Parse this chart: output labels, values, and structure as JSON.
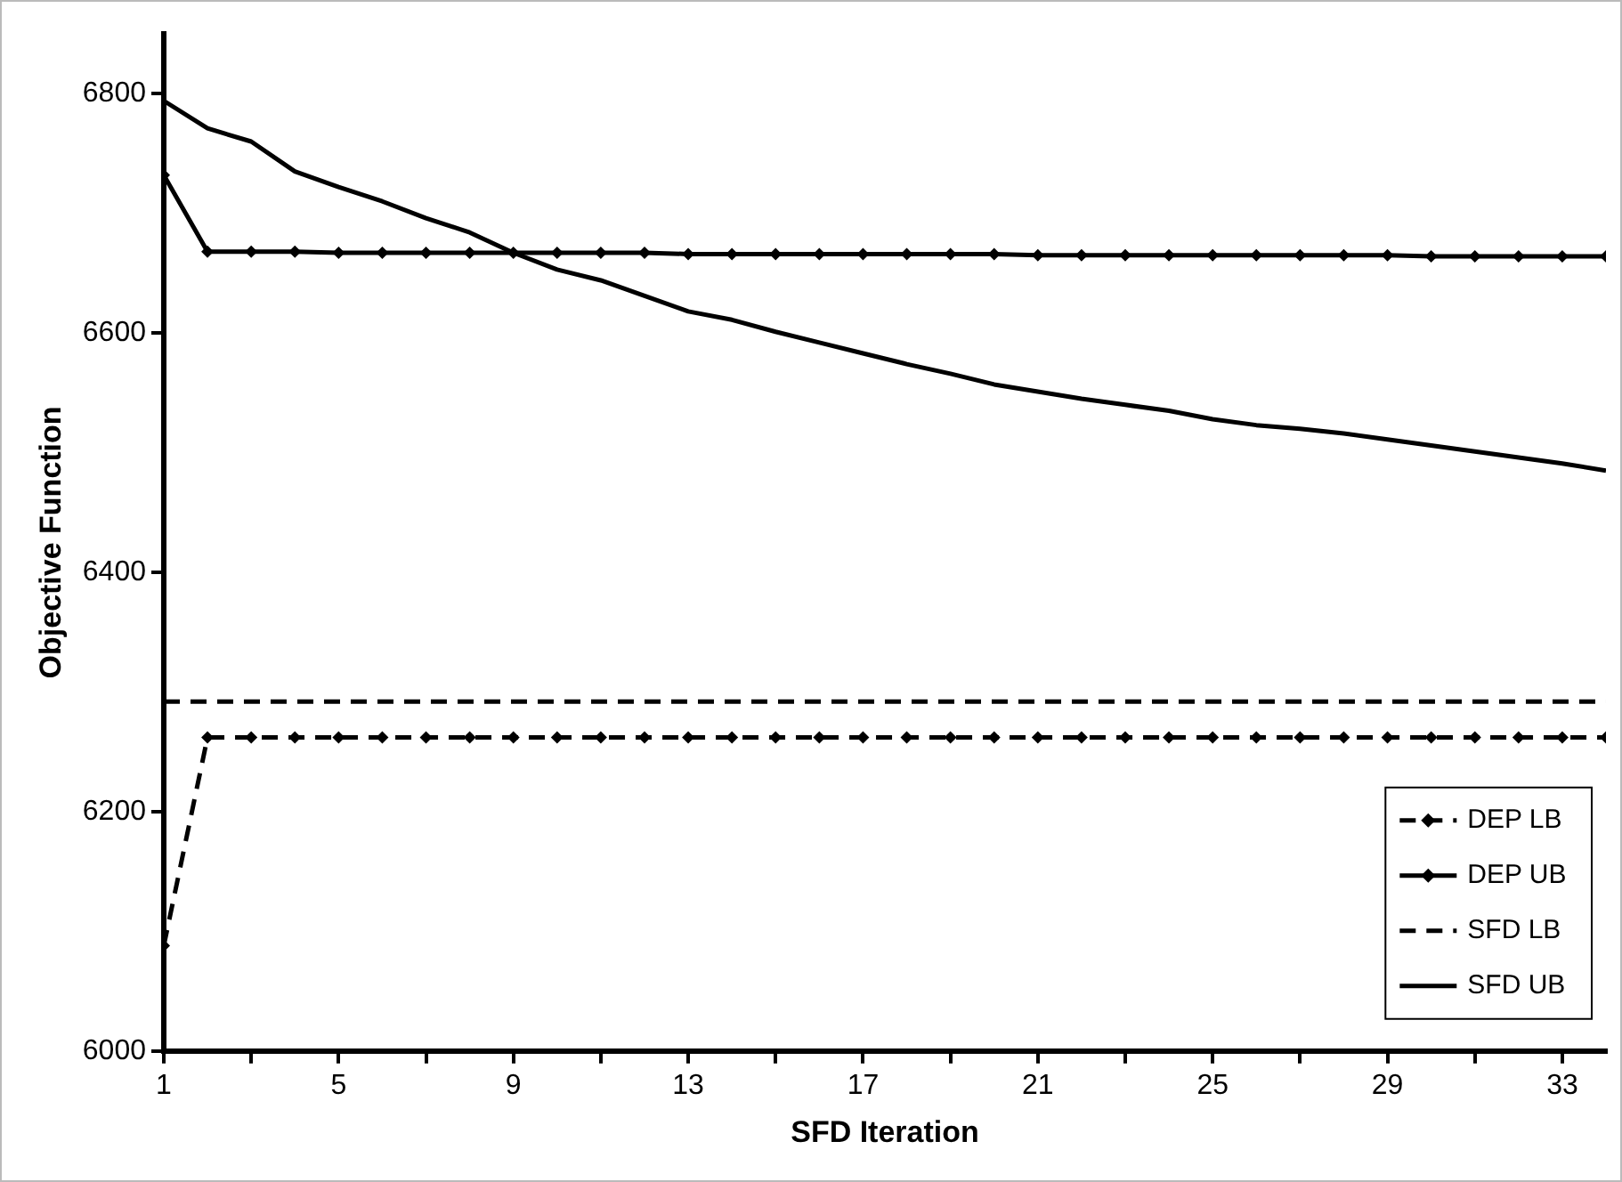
{
  "chart_data": {
    "type": "line",
    "xlabel": "SFD Iteration",
    "ylabel": "Objective Function",
    "x": [
      1,
      2,
      3,
      4,
      5,
      6,
      7,
      8,
      9,
      10,
      11,
      12,
      13,
      14,
      15,
      16,
      17,
      18,
      19,
      20,
      21,
      22,
      23,
      24,
      25,
      26,
      27,
      28,
      29,
      30,
      31,
      32,
      33,
      34
    ],
    "xlim": [
      1,
      34
    ],
    "xticks": [
      1,
      {
        "value": 3,
        "label": null
      },
      5,
      {
        "value": 7,
        "label": null
      },
      9,
      {
        "value": 11,
        "label": null
      },
      13,
      {
        "value": 15,
        "label": null
      },
      17,
      {
        "value": 19,
        "label": null
      },
      21,
      {
        "value": 23,
        "label": null
      },
      25,
      {
        "value": 27,
        "label": null
      },
      29,
      {
        "value": 31,
        "label": null
      },
      33
    ],
    "ylim": [
      6000,
      6850
    ],
    "yticks": [
      6000,
      6200,
      6400,
      6600,
      6800
    ],
    "grid": false,
    "legend": "bottom right",
    "series": [
      {
        "name": "DEP LB",
        "color": "#000000",
        "marker": "diamond",
        "line_style": "dashed",
        "values": [
          6088,
          6262,
          6262,
          6262,
          6262,
          6262,
          6262,
          6262,
          6262,
          6262,
          6262,
          6262,
          6262,
          6262,
          6262,
          6262,
          6262,
          6262,
          6262,
          6262,
          6262,
          6262,
          6262,
          6262,
          6262,
          6262,
          6262,
          6262,
          6262,
          6262,
          6262,
          6262,
          6262,
          6262
        ]
      },
      {
        "name": "DEP UB",
        "color": "#000000",
        "marker": "diamond",
        "line_style": "solid",
        "values": [
          6732,
          6668,
          6668,
          6668,
          6667,
          6667,
          6667,
          6667,
          6667,
          6667,
          6667,
          6667,
          6666,
          6666,
          6666,
          6666,
          6666,
          6666,
          6666,
          6666,
          6665,
          6665,
          6665,
          6665,
          6665,
          6665,
          6665,
          6665,
          6665,
          6664,
          6664,
          6664,
          6664,
          6664
        ]
      },
      {
        "name": "SFD LB",
        "color": "#000000",
        "marker": "none",
        "line_style": "dashed",
        "values": [
          6292,
          6292,
          6292,
          6292,
          6292,
          6292,
          6292,
          6292,
          6292,
          6292,
          6292,
          6292,
          6292,
          6292,
          6292,
          6292,
          6292,
          6292,
          6292,
          6292,
          6292,
          6292,
          6292,
          6292,
          6292,
          6292,
          6292,
          6292,
          6292,
          6292,
          6292,
          6292,
          6292,
          6292
        ]
      },
      {
        "name": "SFD UB",
        "color": "#000000",
        "marker": "none",
        "line_style": "solid",
        "values": [
          6794,
          6771,
          6760,
          6735,
          6722,
          6710,
          6696,
          6684,
          6667,
          6653,
          6644,
          6631,
          6618,
          6611,
          6601,
          6592,
          6583,
          6574,
          6566,
          6557,
          6551,
          6545,
          6540,
          6535,
          6528,
          6523,
          6520,
          6516,
          6511,
          6506,
          6501,
          6496,
          6491,
          6485
        ]
      }
    ]
  }
}
